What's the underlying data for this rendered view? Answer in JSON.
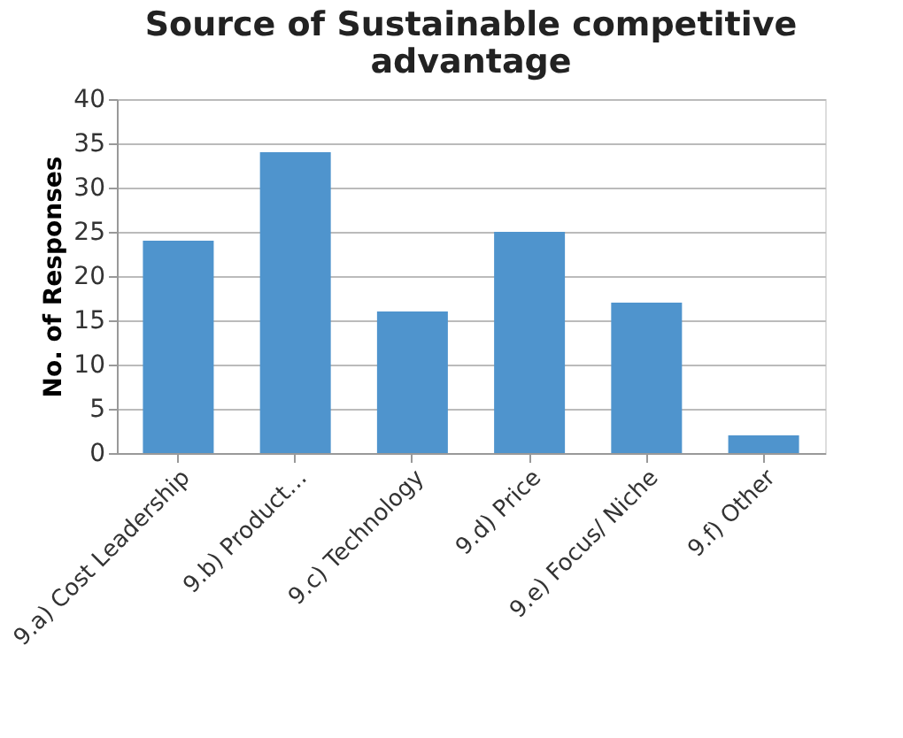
{
  "chart_data": {
    "type": "bar",
    "title": [
      "Source of Sustainable competitive",
      "advantage"
    ],
    "ylabel": "No. of Responses",
    "categories": [
      "9.a) Cost Leadership",
      "9.b) Product…",
      "9.c) Technology",
      "9.d) Price",
      "9.e) Focus/ Niche",
      "9.f) Other"
    ],
    "values": [
      24,
      34,
      16,
      25,
      17,
      2
    ],
    "color": "#4f94cd",
    "ylim": [
      0,
      40
    ],
    "yticks": [
      0,
      5,
      10,
      15,
      20,
      25,
      30,
      35,
      40
    ],
    "grid": "y"
  }
}
